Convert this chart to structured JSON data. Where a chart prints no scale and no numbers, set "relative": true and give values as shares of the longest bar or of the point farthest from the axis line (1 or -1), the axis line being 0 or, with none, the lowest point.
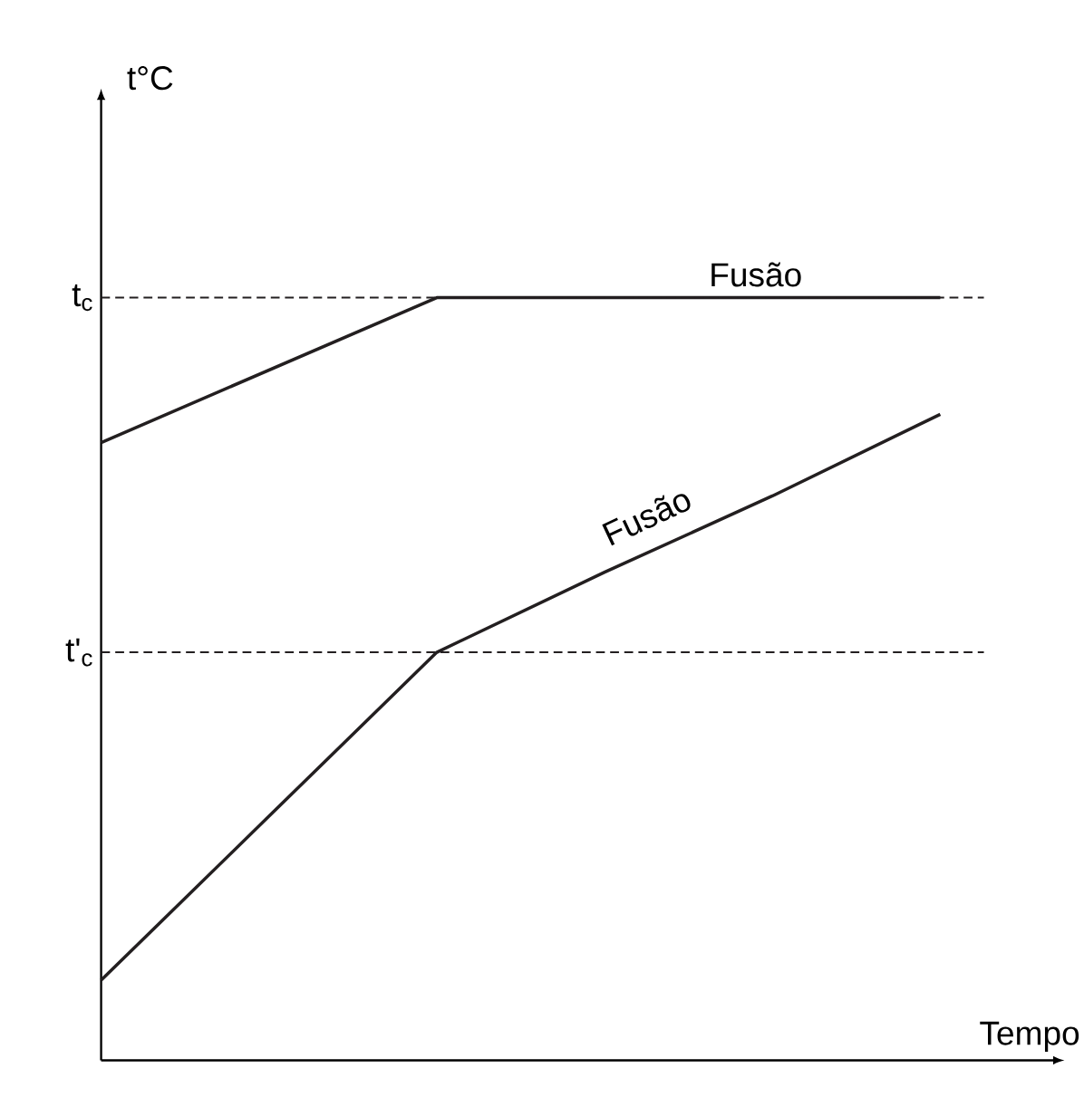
{
  "chart_data": {
    "type": "line",
    "relative": true,
    "xlabel": "Tempo",
    "categories": [
      null,
      null,
      null,
      null,
      null,
      null
    ],
    "series": [
      {
        "color": "#231f20",
        "values": [
          0.81,
          0.905,
          1,
          1,
          1,
          1
        ]
      },
      {
        "color": "#231f20",
        "values": [
          0.105,
          0.32,
          0.535,
          0.64,
          0.74,
          0.847
        ]
      }
    ],
    "ref_lines": [
      {
        "axis": "y",
        "value": 1,
        "label": "t$_{c}$",
        "color": "#231f20",
        "line_style": "dashed"
      },
      {
        "axis": "y",
        "value": 0.535,
        "label": "t'$_{c}$",
        "color": "#231f20",
        "line_style": "dashed"
      }
    ],
    "annotations": [
      {
        "text": "Fusão",
        "y": 1
      },
      "Fusão",
      "t°C"
    ],
    "marker": "none",
    "line_style": "solid"
  }
}
